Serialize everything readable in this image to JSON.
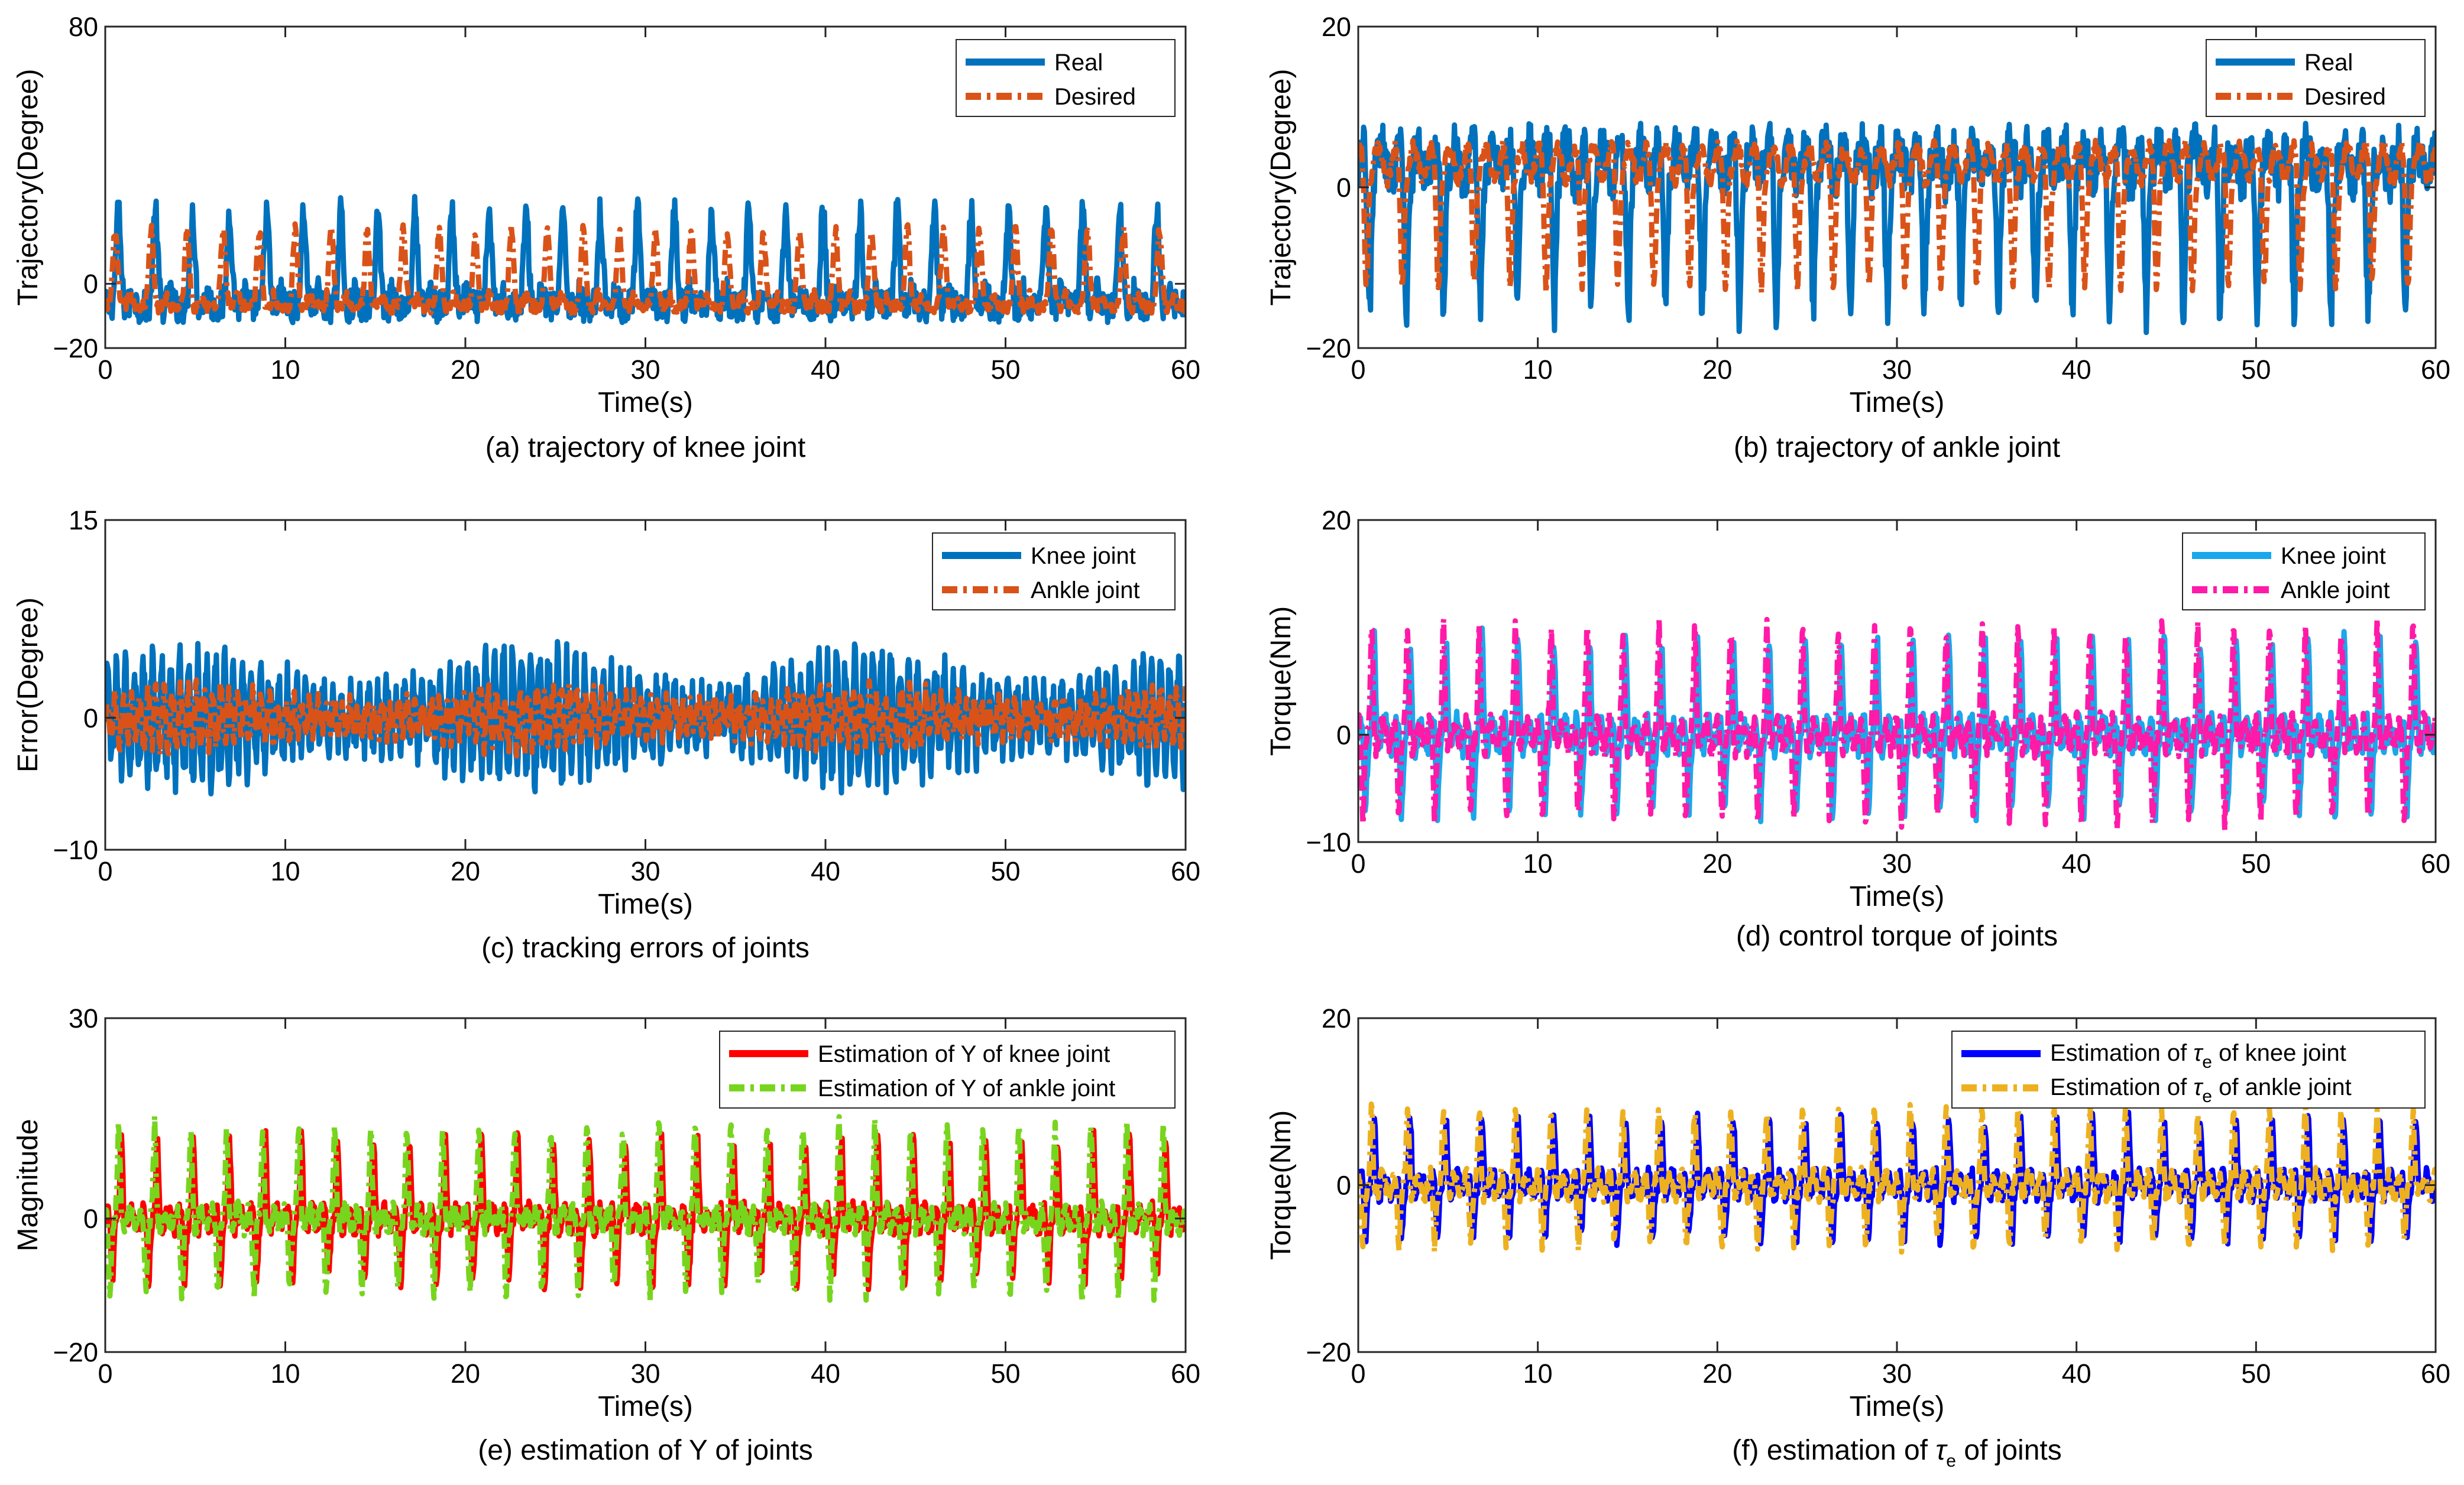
{
  "figure": {
    "description_free": true
  },
  "colors": {
    "blue": "#0072BD",
    "orange": "#D95319",
    "lightblue": "#1AA7EC",
    "magenta": "#FF1AA8",
    "red": "#FF0000",
    "green": "#77D51E",
    "darkblue": "#0000FF",
    "gold": "#EDB120"
  },
  "chart_data": [
    {
      "id": "a",
      "type": "line",
      "caption": "(a) trajectory of knee joint",
      "xlabel": "Time(s)",
      "ylabel": "Trajectory(Degree)",
      "xlim": [
        0,
        60
      ],
      "ylim": [
        -20,
        80
      ],
      "xticks": [
        "0",
        "10",
        "20",
        "30",
        "40",
        "50",
        "60"
      ],
      "yticks": [
        "−20",
        "0",
        "80"
      ],
      "ytick_values": [
        -20,
        0,
        80
      ],
      "legend": "top-right",
      "series": [
        {
          "name": "Real",
          "color": "#0072BD",
          "style": "solid",
          "signal": "periodic",
          "period": 2.06,
          "offset": 14,
          "amplitude": 30,
          "jitter": 5
        },
        {
          "name": "Desired",
          "color": "#D95319",
          "style": "dashdot",
          "signal": "periodic",
          "period": 2.0,
          "offset": 14,
          "amplitude": 24,
          "jitter": 2
        }
      ]
    },
    {
      "id": "b",
      "type": "line",
      "caption": "(b) trajectory of ankle joint",
      "xlabel": "Time(s)",
      "ylabel": "Trajectory(Degree)",
      "xlim": [
        0,
        60
      ],
      "ylim": [
        -20,
        20
      ],
      "xticks": [
        "0",
        "10",
        "20",
        "30",
        "40",
        "50",
        "60"
      ],
      "yticks": [
        "−20",
        "0",
        "20"
      ],
      "ytick_values": [
        -20,
        0,
        20
      ],
      "legend": "top-right",
      "series": [
        {
          "name": "Real",
          "color": "#0072BD",
          "style": "solid",
          "signal": "ankle",
          "period": 2.06,
          "offset": 0,
          "amplitude": 17,
          "jitter": 3
        },
        {
          "name": "Desired",
          "color": "#D95319",
          "style": "dashdot",
          "signal": "ankle",
          "period": 2.0,
          "offset": 0,
          "amplitude": 14,
          "jitter": 1
        }
      ]
    },
    {
      "id": "c",
      "type": "line",
      "caption": "(c) tracking errors of joints",
      "xlabel": "Time(s)",
      "ylabel": "Error(Degree)",
      "xlim": [
        0,
        60
      ],
      "ylim": [
        -10,
        15
      ],
      "xticks": [
        "0",
        "10",
        "20",
        "30",
        "40",
        "50",
        "60"
      ],
      "yticks": [
        "−10",
        "0",
        "15"
      ],
      "ytick_values": [
        -10,
        0,
        15
      ],
      "legend": "top-right",
      "series": [
        {
          "name": "Knee joint",
          "color": "#0072BD",
          "style": "solid",
          "signal": "error",
          "period": 0.5,
          "offset": 0,
          "amplitude": 4.5,
          "jitter": 1.5
        },
        {
          "name": "Ankle joint",
          "color": "#D95319",
          "style": "dashdot",
          "signal": "error",
          "period": 0.45,
          "offset": 0,
          "amplitude": 2,
          "jitter": 1
        }
      ]
    },
    {
      "id": "d",
      "type": "line",
      "caption": "(d) control torque of joints",
      "xlabel": "Time(s)",
      "ylabel": "Torque(Nm)",
      "xlim": [
        0,
        60
      ],
      "ylim": [
        -10,
        20
      ],
      "xticks": [
        "0",
        "10",
        "20",
        "30",
        "40",
        "50",
        "60"
      ],
      "yticks": [
        "−10",
        "0",
        "20"
      ],
      "ytick_values": [
        -10,
        0,
        20
      ],
      "legend": "top-right",
      "series": [
        {
          "name": "Knee joint",
          "color": "#1AA7EC",
          "style": "solid",
          "signal": "torque",
          "period": 2.0,
          "offset": 0,
          "amplitude": 8,
          "jitter": 1
        },
        {
          "name": "Ankle joint",
          "color": "#FF1AA8",
          "style": "dashdot",
          "signal": "torque",
          "period": 2.0,
          "offset": 0,
          "amplitude": 9,
          "jitter": 1
        }
      ]
    },
    {
      "id": "e",
      "type": "line",
      "caption": "(e) estimation of Y of joints",
      "xlabel": "Time(s)",
      "ylabel": "Magnitude",
      "xlim": [
        0,
        60
      ],
      "ylim": [
        -20,
        30
      ],
      "xticks": [
        "0",
        "10",
        "20",
        "30",
        "40",
        "50",
        "60"
      ],
      "yticks": [
        "−20",
        "0",
        "30"
      ],
      "ytick_values": [
        -20,
        0,
        30
      ],
      "legend": "top-right",
      "series": [
        {
          "name": "Estimation of Y of knee joint",
          "color": "#FF0000",
          "style": "solid",
          "signal": "torque",
          "period": 2.0,
          "offset": 0,
          "amplitude": 11,
          "jitter": 1.5
        },
        {
          "name": "Estimation of Y of ankle joint",
          "color": "#77D51E",
          "style": "dashdot",
          "signal": "torque",
          "period": 2.0,
          "offset": 0,
          "amplitude": 13,
          "jitter": 1.5
        }
      ]
    },
    {
      "id": "f",
      "type": "line",
      "caption_parts": [
        "(f) estimation of ",
        "τ",
        "e",
        " of joints"
      ],
      "xlabel": "Time(s)",
      "ylabel": "Torque(Nm)",
      "xlim": [
        0,
        60
      ],
      "ylim": [
        -20,
        20
      ],
      "xticks": [
        "0",
        "10",
        "20",
        "30",
        "40",
        "50",
        "60"
      ],
      "yticks": [
        "−20",
        "0",
        "20"
      ],
      "ytick_values": [
        -20,
        0,
        20
      ],
      "legend": "top-right",
      "series": [
        {
          "name_parts": [
            "Estimation of ",
            "τ",
            "e",
            " of knee joint"
          ],
          "color": "#0000FF",
          "style": "solid",
          "signal": "torque",
          "period": 2.0,
          "offset": 0,
          "amplitude": 7,
          "jitter": 1
        },
        {
          "name_parts": [
            "Estimation of ",
            "τ",
            "e",
            " of ankle joint"
          ],
          "color": "#EDB120",
          "style": "dashdot",
          "signal": "torque",
          "period": 2.0,
          "offset": 0,
          "amplitude": 8,
          "jitter": 1
        }
      ]
    }
  ]
}
